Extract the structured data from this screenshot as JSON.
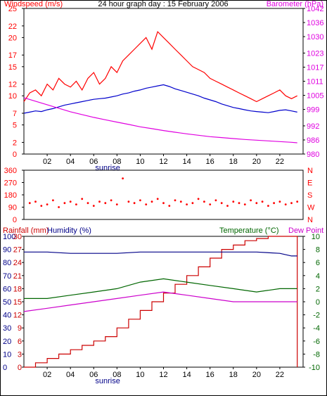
{
  "colors": {
    "wind_avg": "#0000cc",
    "wind_gust": "#ff0000",
    "barometer": "#e000e0",
    "direction": "#ff0000",
    "rain": "#cc0000",
    "humidity": "#000088",
    "temperature": "#006600",
    "dewpoint": "#cc00cc",
    "frame": "#000000"
  },
  "chart_data": [
    {
      "type": "line",
      "title": "24 hour graph day : 15 February 2006",
      "left_label": "Windspeed (m/s)",
      "right_label": "Barometer (hPa)",
      "x_ticks": [
        "02",
        "04",
        "06",
        "08",
        "10",
        "12",
        "14",
        "16",
        "18",
        "20",
        "22"
      ],
      "x_range": [
        0,
        24
      ],
      "sunrise_label": "sunrise",
      "sunrise_x": 7.2,
      "y_left_ticks": [
        0,
        2,
        5,
        7,
        10,
        12,
        15,
        17,
        20,
        22,
        25
      ],
      "y_left_range": [
        0,
        25
      ],
      "y_right_ticks": [
        980,
        986,
        992,
        999,
        1005,
        1011,
        1017,
        1023,
        1030,
        1036,
        1042
      ],
      "y_right_range": [
        980,
        1042
      ],
      "series": [
        {
          "name": "gust",
          "axis": "left",
          "points": [
            [
              0,
              9
            ],
            [
              0.5,
              10.5
            ],
            [
              1,
              11
            ],
            [
              1.5,
              10
            ],
            [
              2,
              12
            ],
            [
              2.5,
              11
            ],
            [
              3,
              13
            ],
            [
              3.5,
              12
            ],
            [
              4,
              11.5
            ],
            [
              4.5,
              12.5
            ],
            [
              5,
              11
            ],
            [
              5.5,
              13
            ],
            [
              6,
              14
            ],
            [
              6.5,
              12
            ],
            [
              7,
              13
            ],
            [
              7.5,
              15
            ],
            [
              8,
              14
            ],
            [
              8.5,
              16
            ],
            [
              9,
              17
            ],
            [
              9.5,
              18
            ],
            [
              10,
              19
            ],
            [
              10.5,
              20
            ],
            [
              11,
              18
            ],
            [
              11.5,
              21
            ],
            [
              12,
              20
            ],
            [
              12.5,
              19
            ],
            [
              13,
              18
            ],
            [
              13.5,
              17
            ],
            [
              14,
              16
            ],
            [
              14.5,
              15
            ],
            [
              15,
              14.5
            ],
            [
              15.5,
              14
            ],
            [
              16,
              13
            ],
            [
              16.5,
              12.5
            ],
            [
              17,
              12
            ],
            [
              17.5,
              11.5
            ],
            [
              18,
              11
            ],
            [
              18.5,
              10.5
            ],
            [
              19,
              10
            ],
            [
              19.5,
              9.5
            ],
            [
              20,
              9
            ],
            [
              20.5,
              9.5
            ],
            [
              21,
              10
            ],
            [
              21.5,
              10.5
            ],
            [
              22,
              11
            ],
            [
              22.5,
              10
            ],
            [
              23,
              9.5
            ],
            [
              23.5,
              10
            ]
          ]
        },
        {
          "name": "average",
          "axis": "left",
          "points": [
            [
              0,
              7
            ],
            [
              0.5,
              7.2
            ],
            [
              1,
              7.4
            ],
            [
              1.5,
              7.3
            ],
            [
              2,
              7.6
            ],
            [
              2.5,
              7.8
            ],
            [
              3,
              8.1
            ],
            [
              3.5,
              8.4
            ],
            [
              4,
              8.6
            ],
            [
              4.5,
              8.8
            ],
            [
              5,
              9
            ],
            [
              5.5,
              9.2
            ],
            [
              6,
              9.4
            ],
            [
              6.5,
              9.5
            ],
            [
              7,
              9.6
            ],
            [
              7.5,
              9.8
            ],
            [
              8,
              10
            ],
            [
              8.5,
              10.3
            ],
            [
              9,
              10.5
            ],
            [
              9.5,
              10.8
            ],
            [
              10,
              11
            ],
            [
              10.5,
              11.3
            ],
            [
              11,
              11.5
            ],
            [
              11.5,
              11.7
            ],
            [
              12,
              11.9
            ],
            [
              12.5,
              11.6
            ],
            [
              13,
              11.2
            ],
            [
              13.5,
              10.9
            ],
            [
              14,
              10.6
            ],
            [
              14.5,
              10.3
            ],
            [
              15,
              10
            ],
            [
              15.5,
              9.6
            ],
            [
              16,
              9.3
            ],
            [
              16.5,
              9
            ],
            [
              17,
              8.6
            ],
            [
              17.5,
              8.3
            ],
            [
              18,
              8
            ],
            [
              18.5,
              7.8
            ],
            [
              19,
              7.6
            ],
            [
              19.5,
              7.4
            ],
            [
              20,
              7.3
            ],
            [
              20.5,
              7.2
            ],
            [
              21,
              7.1
            ],
            [
              21.5,
              7.3
            ],
            [
              22,
              7.5
            ],
            [
              22.5,
              7.6
            ],
            [
              23,
              7.4
            ],
            [
              23.5,
              7.2
            ]
          ]
        },
        {
          "name": "barometer",
          "axis": "right",
          "points": [
            [
              0,
              1004
            ],
            [
              1,
              1002.5
            ],
            [
              2,
              1001
            ],
            [
              3,
              999.5
            ],
            [
              4,
              998
            ],
            [
              5,
              996.8
            ],
            [
              6,
              995.6
            ],
            [
              7,
              994.6
            ],
            [
              8,
              993.6
            ],
            [
              9,
              992.6
            ],
            [
              10,
              991.6
            ],
            [
              11,
              990.8
            ],
            [
              12,
              990
            ],
            [
              13,
              989.3
            ],
            [
              14,
              988.6
            ],
            [
              15,
              988
            ],
            [
              16,
              987.4
            ],
            [
              17,
              987
            ],
            [
              18,
              986.6
            ],
            [
              19,
              986.2
            ],
            [
              20,
              985.9
            ],
            [
              21,
              985.6
            ],
            [
              22,
              985.3
            ],
            [
              23,
              985
            ],
            [
              23.5,
              984.8
            ]
          ]
        }
      ]
    },
    {
      "type": "scatter",
      "name": "wind direction",
      "x_range": [
        0,
        24
      ],
      "y_left_ticks": [
        0,
        90,
        180,
        270,
        360
      ],
      "y_left_range": [
        0,
        360
      ],
      "y_right_ticks": [
        "N",
        "W",
        "S",
        "E",
        "N"
      ],
      "points": [
        [
          0.5,
          120
        ],
        [
          1,
          130
        ],
        [
          1.5,
          100
        ],
        [
          2,
          110
        ],
        [
          2.5,
          140
        ],
        [
          3,
          90
        ],
        [
          3.5,
          120
        ],
        [
          4,
          130
        ],
        [
          4.5,
          110
        ],
        [
          5,
          150
        ],
        [
          5.5,
          120
        ],
        [
          6,
          100
        ],
        [
          6.5,
          130
        ],
        [
          7,
          120
        ],
        [
          7.5,
          140
        ],
        [
          8,
          110
        ],
        [
          8.5,
          300
        ],
        [
          9,
          130
        ],
        [
          9.5,
          120
        ],
        [
          10,
          140
        ],
        [
          10.5,
          110
        ],
        [
          11,
          130
        ],
        [
          11.5,
          150
        ],
        [
          12,
          120
        ],
        [
          12.5,
          100
        ],
        [
          13,
          140
        ],
        [
          13.5,
          130
        ],
        [
          14,
          110
        ],
        [
          14.5,
          120
        ],
        [
          15,
          150
        ],
        [
          15.5,
          130
        ],
        [
          16,
          110
        ],
        [
          16.5,
          140
        ],
        [
          17,
          120
        ],
        [
          17.5,
          100
        ],
        [
          18,
          130
        ],
        [
          18.5,
          120
        ],
        [
          19,
          110
        ],
        [
          19.5,
          140
        ],
        [
          20,
          120
        ],
        [
          20.5,
          130
        ],
        [
          21,
          100
        ],
        [
          21.5,
          120
        ],
        [
          22,
          130
        ],
        [
          22.5,
          110
        ],
        [
          23,
          120
        ],
        [
          23.5,
          130
        ]
      ]
    },
    {
      "type": "line",
      "left_label_1": "Rainfall (mm)",
      "left_label_2": "Humidity (%)",
      "right_label_1": "Temperature (°C)",
      "right_label_2": "Dew Point",
      "x_ticks": [
        "02",
        "04",
        "06",
        "08",
        "10",
        "12",
        "14",
        "16",
        "18",
        "20",
        "22"
      ],
      "x_range": [
        0,
        24
      ],
      "sunrise_label": "sunrise",
      "sunrise_x": 7.2,
      "rain_ticks": [
        0,
        3,
        6,
        9,
        12,
        15,
        18,
        21,
        24,
        27,
        30
      ],
      "rain_range": [
        0,
        30
      ],
      "humidity_ticks": [
        0,
        10,
        20,
        30,
        40,
        50,
        60,
        70,
        80,
        90,
        100
      ],
      "humidity_range": [
        0,
        100
      ],
      "temp_ticks": [
        -10,
        -8,
        -6,
        -4,
        -2,
        0,
        2,
        4,
        6,
        8,
        10
      ],
      "temp_range": [
        -10,
        10
      ],
      "series": [
        {
          "name": "rainfall",
          "axis": "rain",
          "points": [
            [
              0,
              0
            ],
            [
              1,
              1
            ],
            [
              2,
              2
            ],
            [
              3,
              3
            ],
            [
              4,
              4
            ],
            [
              5,
              5
            ],
            [
              6,
              6
            ],
            [
              7,
              7
            ],
            [
              8,
              9
            ],
            [
              9,
              11
            ],
            [
              10,
              13
            ],
            [
              11,
              15
            ],
            [
              12,
              17
            ],
            [
              13,
              19
            ],
            [
              14,
              21
            ],
            [
              15,
              23
            ],
            [
              16,
              25
            ],
            [
              17,
              27
            ],
            [
              18,
              28
            ],
            [
              19,
              29
            ],
            [
              20,
              29.5
            ],
            [
              21,
              30
            ],
            [
              22,
              30
            ],
            [
              23,
              30
            ],
            [
              23.5,
              0
            ]
          ]
        },
        {
          "name": "humidity",
          "axis": "humidity",
          "points": [
            [
              0,
              88
            ],
            [
              2,
              88
            ],
            [
              4,
              87
            ],
            [
              6,
              87
            ],
            [
              8,
              87
            ],
            [
              10,
              88
            ],
            [
              12,
              88
            ],
            [
              14,
              88
            ],
            [
              16,
              88
            ],
            [
              18,
              88
            ],
            [
              20,
              88
            ],
            [
              22,
              87
            ],
            [
              23,
              85
            ],
            [
              23.5,
              85
            ]
          ]
        },
        {
          "name": "temperature",
          "axis": "temp",
          "points": [
            [
              0,
              0.5
            ],
            [
              2,
              0.5
            ],
            [
              4,
              1
            ],
            [
              6,
              1.5
            ],
            [
              8,
              2
            ],
            [
              10,
              3
            ],
            [
              12,
              3.5
            ],
            [
              14,
              3
            ],
            [
              16,
              2.5
            ],
            [
              18,
              2
            ],
            [
              20,
              1.5
            ],
            [
              22,
              2
            ],
            [
              23.5,
              2
            ]
          ]
        },
        {
          "name": "dewpoint",
          "axis": "temp",
          "points": [
            [
              0,
              -1.5
            ],
            [
              2,
              -1
            ],
            [
              4,
              -0.5
            ],
            [
              6,
              0
            ],
            [
              8,
              0.5
            ],
            [
              10,
              1
            ],
            [
              12,
              1.5
            ],
            [
              14,
              1
            ],
            [
              16,
              0.5
            ],
            [
              18,
              0
            ],
            [
              20,
              0
            ],
            [
              22,
              0
            ],
            [
              23.5,
              0
            ]
          ]
        }
      ]
    }
  ]
}
